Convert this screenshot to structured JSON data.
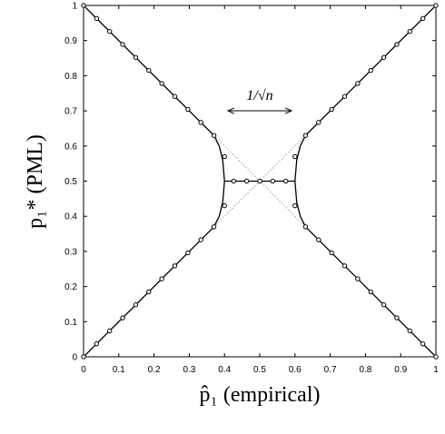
{
  "chart_data": {
    "type": "line",
    "xlabel": "p̂₁ (empirical)",
    "ylabel": "p₁* (PML)",
    "annotation": "1/√n",
    "xlim": [
      0,
      1
    ],
    "ylim": [
      0,
      1
    ],
    "xticks": [
      0,
      0.1,
      0.2,
      0.3,
      0.4,
      0.5,
      0.6,
      0.7,
      0.8,
      0.9,
      1
    ],
    "yticks": [
      0,
      0.1,
      0.2,
      0.3,
      0.4,
      0.5,
      0.6,
      0.7,
      0.8,
      0.9,
      1
    ],
    "series": [
      {
        "style": "solid",
        "color": "#000000",
        "x": [
          0,
          0.37,
          0.385,
          0.395,
          0.4,
          0.395,
          0.385,
          0.37,
          0,
          null,
          1,
          0.63,
          0.615,
          0.605,
          0.6,
          0.605,
          0.615,
          0.63,
          1,
          null,
          0.4,
          0.6
        ],
        "values": [
          1,
          0.63,
          0.6,
          0.56,
          0.5,
          0.44,
          0.4,
          0.37,
          0,
          null,
          1,
          0.63,
          0.6,
          0.56,
          0.5,
          0.44,
          0.4,
          0.37,
          0,
          null,
          0.5,
          0.5
        ]
      },
      {
        "style": "dotted",
        "color": "#999999",
        "x": [
          0.37,
          0.63,
          null,
          0.37,
          0.63
        ],
        "values": [
          0.63,
          0.37,
          null,
          0.37,
          0.63
        ]
      },
      {
        "style": "markers",
        "color": "#000000",
        "x": [
          0,
          0.037,
          0.074,
          0.111,
          0.148,
          0.185,
          0.222,
          0.259,
          0.296,
          0.333,
          0.37,
          0,
          0.037,
          0.074,
          0.111,
          0.148,
          0.185,
          0.222,
          0.259,
          0.296,
          0.333,
          0.37,
          0.63,
          0.667,
          0.704,
          0.741,
          0.778,
          0.815,
          0.852,
          0.889,
          0.926,
          0.963,
          1,
          0.63,
          0.667,
          0.704,
          0.741,
          0.778,
          0.815,
          0.852,
          0.889,
          0.926,
          0.963,
          1,
          0.4,
          0.4,
          0.6,
          0.6,
          0.426,
          0.463,
          0.5,
          0.537,
          0.574
        ],
        "values": [
          1,
          0.963,
          0.926,
          0.889,
          0.852,
          0.815,
          0.778,
          0.741,
          0.704,
          0.667,
          0.63,
          0,
          0.037,
          0.074,
          0.111,
          0.148,
          0.185,
          0.222,
          0.259,
          0.296,
          0.333,
          0.37,
          0.63,
          0.667,
          0.704,
          0.741,
          0.778,
          0.815,
          0.852,
          0.889,
          0.926,
          0.963,
          1,
          0.37,
          0.333,
          0.296,
          0.259,
          0.222,
          0.185,
          0.148,
          0.111,
          0.074,
          0.037,
          0,
          0.57,
          0.43,
          0.57,
          0.43,
          0.5,
          0.5,
          0.5,
          0.5,
          0.5
        ]
      }
    ]
  }
}
